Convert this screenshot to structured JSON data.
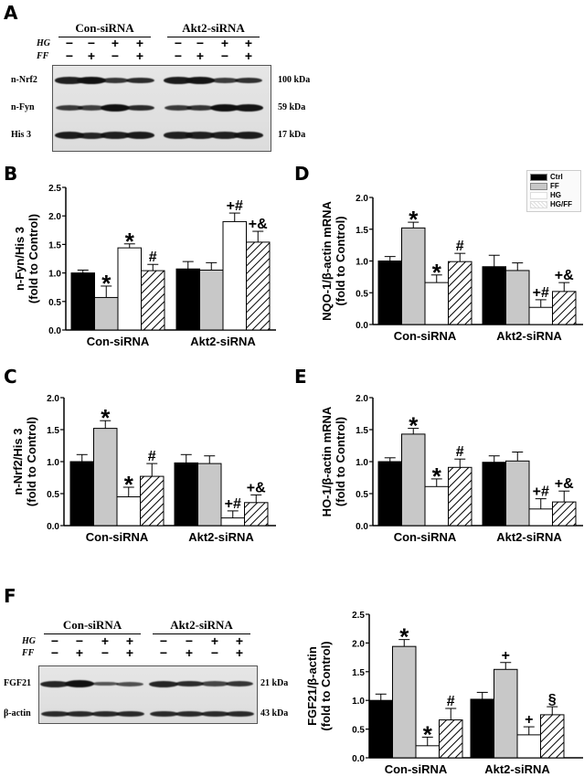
{
  "panels": {
    "A": {
      "letter": "A"
    },
    "B": {
      "letter": "B"
    },
    "C": {
      "letter": "C"
    },
    "D": {
      "letter": "D"
    },
    "E": {
      "letter": "E"
    },
    "F": {
      "letter": "F"
    }
  },
  "blot_A": {
    "groups": [
      "Con-siRNA",
      "Akt2-siRNA"
    ],
    "conditions": [
      {
        "label": "HG",
        "signs": [
          "−",
          "−",
          "+",
          "+",
          "−",
          "−",
          "+",
          "+"
        ]
      },
      {
        "label": "FF",
        "signs": [
          "−",
          "+",
          "−",
          "+",
          "−",
          "+",
          "−",
          "+"
        ]
      }
    ],
    "rows": [
      {
        "label": "n-Nrf2",
        "kda": "100 kDa",
        "intensity": [
          0.85,
          1.0,
          0.65,
          0.75,
          0.9,
          0.95,
          0.6,
          0.7
        ]
      },
      {
        "label": "n-Fyn",
        "kda": "59 kDa",
        "intensity": [
          0.6,
          0.55,
          1.0,
          0.75,
          0.6,
          0.65,
          1.0,
          0.95
        ]
      },
      {
        "label": "His 3",
        "kda": "17 kDa",
        "intensity": [
          0.9,
          0.8,
          0.85,
          0.9,
          0.85,
          0.85,
          0.85,
          0.9
        ]
      }
    ]
  },
  "blot_F": {
    "groups": [
      "Con-siRNA",
      "Akt2-siRNA"
    ],
    "conditions": [
      {
        "label": "HG",
        "signs": [
          "−",
          "−",
          "+",
          "+",
          "−",
          "−",
          "+",
          "+"
        ]
      },
      {
        "label": "FF",
        "signs": [
          "−",
          "+",
          "−",
          "+",
          "−",
          "+",
          "−",
          "+"
        ]
      }
    ],
    "rows": [
      {
        "label": "FGF21",
        "kda": "21 kDa",
        "intensity": [
          0.8,
          1.0,
          0.35,
          0.4,
          0.8,
          0.75,
          0.5,
          0.65
        ]
      },
      {
        "label": "β-actin",
        "kda": "43 kDa",
        "intensity": [
          0.75,
          0.75,
          0.75,
          0.75,
          0.75,
          0.75,
          0.75,
          0.75
        ]
      }
    ]
  },
  "legend": {
    "items": [
      {
        "label": "Ctrl",
        "fill": "#000000"
      },
      {
        "label": "FF",
        "fill": "#c8c8c8"
      },
      {
        "label": "HG",
        "fill": "#ffffff"
      },
      {
        "label": "HG/FF",
        "fill": "hatch"
      }
    ]
  },
  "chart_data": [
    {
      "id": "B",
      "type": "bar",
      "title": "",
      "ylabel": "n-Fyn/His 3 (fold to Control)",
      "categories": [
        "Con-siRNA",
        "Akt2-siRNA"
      ],
      "ylim": [
        0,
        2.5
      ],
      "yticks": [
        "0.0",
        "0.5",
        "1.0",
        "1.5",
        "2.0",
        "2.5"
      ],
      "series": [
        {
          "name": "Ctrl",
          "values": [
            1.0,
            1.07
          ],
          "errors": [
            0.05,
            0.13
          ],
          "annot": [
            "",
            ""
          ]
        },
        {
          "name": "FF",
          "values": [
            0.57,
            1.05
          ],
          "errors": [
            0.2,
            0.13
          ],
          "annot": [
            "*",
            ""
          ]
        },
        {
          "name": "HG",
          "values": [
            1.44,
            1.9
          ],
          "errors": [
            0.07,
            0.15
          ],
          "annot": [
            "*",
            "+#"
          ]
        },
        {
          "name": "HG/FF",
          "values": [
            1.04,
            1.54
          ],
          "errors": [
            0.11,
            0.19
          ],
          "annot": [
            "#",
            "+&"
          ]
        }
      ]
    },
    {
      "id": "C",
      "type": "bar",
      "ylabel": "n-Nrf2/His 3 (fold to Control)",
      "categories": [
        "Con-siRNA",
        "Akt2-siRNA"
      ],
      "ylim": [
        0,
        2.0
      ],
      "yticks": [
        "0.0",
        "0.5",
        "1.0",
        "1.5",
        "2.0"
      ],
      "series": [
        {
          "name": "Ctrl",
          "values": [
            1.0,
            0.98
          ],
          "errors": [
            0.11,
            0.13
          ],
          "annot": [
            "",
            ""
          ]
        },
        {
          "name": "FF",
          "values": [
            1.52,
            0.97
          ],
          "errors": [
            0.12,
            0.12
          ],
          "annot": [
            "*",
            ""
          ]
        },
        {
          "name": "HG",
          "values": [
            0.45,
            0.12
          ],
          "errors": [
            0.15,
            0.11
          ],
          "annot": [
            "*",
            "+#"
          ]
        },
        {
          "name": "HG/FF",
          "values": [
            0.77,
            0.36
          ],
          "errors": [
            0.2,
            0.12
          ],
          "annot": [
            "#",
            "+&"
          ]
        }
      ]
    },
    {
      "id": "D",
      "type": "bar",
      "ylabel": "NQO-1/β-actin mRNA (fold to Control)",
      "categories": [
        "Con-siRNA",
        "Akt2-siRNA"
      ],
      "ylim": [
        0,
        2.0
      ],
      "yticks": [
        "0.0",
        "0.5",
        "1.0",
        "1.5",
        "2.0"
      ],
      "series": [
        {
          "name": "Ctrl",
          "values": [
            1.0,
            0.91
          ],
          "errors": [
            0.07,
            0.18
          ],
          "annot": [
            "",
            ""
          ]
        },
        {
          "name": "FF",
          "values": [
            1.52,
            0.85
          ],
          "errors": [
            0.09,
            0.12
          ],
          "annot": [
            "*",
            ""
          ]
        },
        {
          "name": "HG",
          "values": [
            0.66,
            0.27
          ],
          "errors": [
            0.12,
            0.12
          ],
          "annot": [
            "*",
            "+#"
          ]
        },
        {
          "name": "HG/FF",
          "values": [
            0.99,
            0.52
          ],
          "errors": [
            0.13,
            0.14
          ],
          "annot": [
            "#",
            "+&"
          ]
        }
      ]
    },
    {
      "id": "E",
      "type": "bar",
      "ylabel": "HO-1/β-actin mRNA (fold to Control)",
      "categories": [
        "Con-siRNA",
        "Akt2-siRNA"
      ],
      "ylim": [
        0,
        2.0
      ],
      "yticks": [
        "0.0",
        "0.5",
        "1.0",
        "1.5",
        "2.0"
      ],
      "series": [
        {
          "name": "Ctrl",
          "values": [
            1.0,
            0.99
          ],
          "errors": [
            0.06,
            0.1
          ],
          "annot": [
            "",
            ""
          ]
        },
        {
          "name": "FF",
          "values": [
            1.43,
            1.01
          ],
          "errors": [
            0.09,
            0.14
          ],
          "annot": [
            "*",
            ""
          ]
        },
        {
          "name": "HG",
          "values": [
            0.61,
            0.26
          ],
          "errors": [
            0.12,
            0.16
          ],
          "annot": [
            "*",
            "+#"
          ]
        },
        {
          "name": "HG/FF",
          "values": [
            0.91,
            0.37
          ],
          "errors": [
            0.13,
            0.17
          ],
          "annot": [
            "#",
            "+&"
          ]
        }
      ]
    },
    {
      "id": "F",
      "type": "bar",
      "ylabel": "FGF21/β-actin (fold to Control)",
      "categories": [
        "Con-siRNA",
        "Akt2-siRNA"
      ],
      "ylim": [
        0,
        2.5
      ],
      "yticks": [
        "0.0",
        "0.5",
        "1.0",
        "1.5",
        "2.0",
        "2.5"
      ],
      "series": [
        {
          "name": "Ctrl",
          "values": [
            1.0,
            1.02
          ],
          "errors": [
            0.11,
            0.12
          ],
          "annot": [
            "",
            ""
          ]
        },
        {
          "name": "FF",
          "values": [
            1.94,
            1.54
          ],
          "errors": [
            0.12,
            0.12
          ],
          "annot": [
            "*",
            "+"
          ]
        },
        {
          "name": "HG",
          "values": [
            0.21,
            0.4
          ],
          "errors": [
            0.15,
            0.14
          ],
          "annot": [
            "*",
            "+"
          ]
        },
        {
          "name": "HG/FF",
          "values": [
            0.66,
            0.75
          ],
          "errors": [
            0.2,
            0.14
          ],
          "annot": [
            "#",
            "§"
          ]
        }
      ]
    }
  ]
}
